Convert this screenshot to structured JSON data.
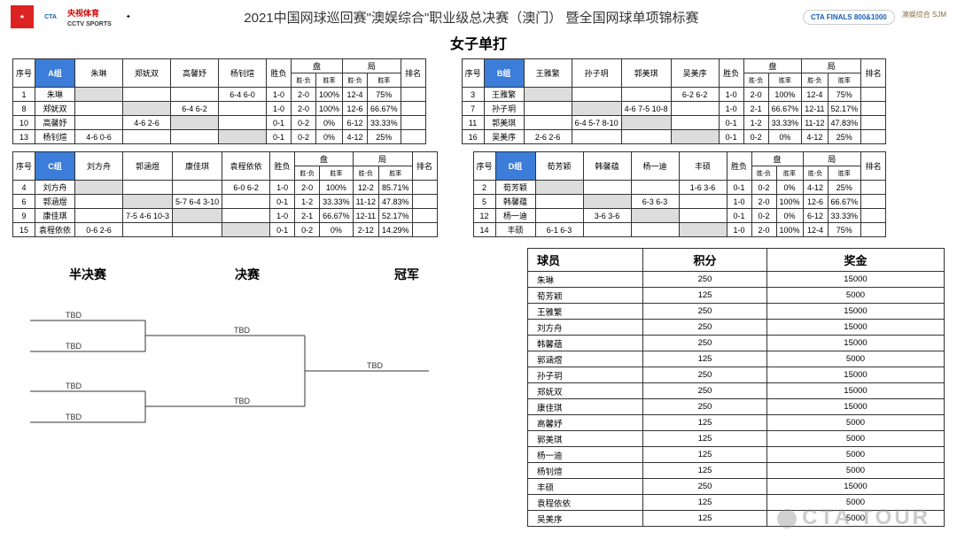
{
  "header": {
    "title": "2021中国网球巡回赛\"澳娱综合\"职业级总决赛（澳门） 暨全国网球单项锦标赛",
    "subtitle": "女子单打",
    "logos_left": [
      "央视体育",
      "CCTV SPORTS"
    ],
    "logos_right": [
      "CTA FINALS 800&1000",
      "澳娱综合 SJM"
    ]
  },
  "group_headers": {
    "seq": "序号",
    "wl": "胜负",
    "pan": "盘",
    "ju": "局",
    "rank": "排名",
    "sf": "胜-负",
    "sl": "胜率"
  },
  "groups": [
    {
      "label": "A组",
      "players": [
        "朱琳",
        "郑妩双",
        "高馨妤",
        "杨钊煊"
      ],
      "rows": [
        {
          "seq": "1",
          "name": "朱琳",
          "v": [
            "",
            "",
            "",
            "6-4 6-0"
          ],
          "wl": "1-0",
          "pf": "2-0",
          "pl": "100%",
          "jf": "12-4",
          "jl": "75%",
          "rank": ""
        },
        {
          "seq": "8",
          "name": "郑妩双",
          "v": [
            "",
            "",
            "6-4 6-2",
            ""
          ],
          "wl": "1-0",
          "pf": "2-0",
          "pl": "100%",
          "jf": "12-6",
          "jl": "66.67%",
          "rank": ""
        },
        {
          "seq": "10",
          "name": "高馨妤",
          "v": [
            "",
            "4-6 2-6",
            "",
            ""
          ],
          "wl": "0-1",
          "pf": "0-2",
          "pl": "0%",
          "jf": "6-12",
          "jl": "33.33%",
          "rank": ""
        },
        {
          "seq": "13",
          "name": "杨钊煊",
          "v": [
            "4-6 0-6",
            "",
            "",
            ""
          ],
          "wl": "0-1",
          "pf": "0-2",
          "pl": "0%",
          "jf": "4-12",
          "jl": "25%",
          "rank": ""
        }
      ]
    },
    {
      "label": "B组",
      "players": [
        "王雅繁",
        "孙子玥",
        "郭美琪",
        "吴美序"
      ],
      "rows": [
        {
          "seq": "3",
          "name": "王雅繁",
          "v": [
            "",
            "",
            "",
            "6-2 6-2"
          ],
          "wl": "1-0",
          "pf": "2-0",
          "pl": "100%",
          "jf": "12-4",
          "jl": "75%",
          "rank": ""
        },
        {
          "seq": "7",
          "name": "孙子玥",
          "v": [
            "",
            "",
            "4-6 7-5 10-8",
            ""
          ],
          "wl": "1-0",
          "pf": "2-1",
          "pl": "66.67%",
          "jf": "12-11",
          "jl": "52.17%",
          "rank": ""
        },
        {
          "seq": "11",
          "name": "郭美琪",
          "v": [
            "",
            "6-4 5-7 8-10",
            "",
            ""
          ],
          "wl": "0-1",
          "pf": "1-2",
          "pl": "33.33%",
          "jf": "11-12",
          "jl": "47.83%",
          "rank": ""
        },
        {
          "seq": "16",
          "name": "吴美序",
          "v": [
            "2-6 2-6",
            "",
            "",
            ""
          ],
          "wl": "0-1",
          "pf": "0-2",
          "pl": "0%",
          "jf": "4-12",
          "jl": "25%",
          "rank": ""
        }
      ]
    },
    {
      "label": "C组",
      "players": [
        "刘方舟",
        "郭涵煜",
        "康佳琪",
        "袁程依依"
      ],
      "rows": [
        {
          "seq": "4",
          "name": "刘方舟",
          "v": [
            "",
            "",
            "",
            "6-0 6-2"
          ],
          "wl": "1-0",
          "pf": "2-0",
          "pl": "100%",
          "jf": "12-2",
          "jl": "85.71%",
          "rank": ""
        },
        {
          "seq": "6",
          "name": "郭涵煜",
          "v": [
            "",
            "",
            "5-7 6-4  3-10",
            ""
          ],
          "wl": "0-1",
          "pf": "1-2",
          "pl": "33.33%",
          "jf": "11-12",
          "jl": "47.83%",
          "rank": ""
        },
        {
          "seq": "9",
          "name": "康佳琪",
          "v": [
            "",
            "7-5 4-6  10-3",
            "",
            ""
          ],
          "wl": "1-0",
          "pf": "2-1",
          "pl": "66.67%",
          "jf": "12-11",
          "jl": "52.17%",
          "rank": ""
        },
        {
          "seq": "15",
          "name": "袁程依依",
          "v": [
            "0-6 2-6",
            "",
            "",
            ""
          ],
          "wl": "0-1",
          "pf": "0-2",
          "pl": "0%",
          "jf": "2-12",
          "jl": "14.29%",
          "rank": ""
        }
      ]
    },
    {
      "label": "D组",
      "players": [
        "荀芳颖",
        "韩馨蕴",
        "杨一迪",
        "丰硕"
      ],
      "rows": [
        {
          "seq": "2",
          "name": "荀芳颖",
          "v": [
            "",
            "",
            "",
            "1-6 3-6"
          ],
          "wl": "0-1",
          "pf": "0-2",
          "pl": "0%",
          "jf": "4-12",
          "jl": "25%",
          "rank": ""
        },
        {
          "seq": "5",
          "name": "韩馨蕴",
          "v": [
            "",
            "",
            "6-3 6-3",
            ""
          ],
          "wl": "1-0",
          "pf": "2-0",
          "pl": "100%",
          "jf": "12-6",
          "jl": "66.67%",
          "rank": ""
        },
        {
          "seq": "12",
          "name": "杨一迪",
          "v": [
            "",
            "3-6 3-6",
            "",
            ""
          ],
          "wl": "0-1",
          "pf": "0-2",
          "pl": "0%",
          "jf": "6-12",
          "jl": "33.33%",
          "rank": ""
        },
        {
          "seq": "14",
          "name": "丰硕",
          "v": [
            "6-1 6-3",
            "",
            "",
            ""
          ],
          "wl": "1-0",
          "pf": "2-0",
          "pl": "100%",
          "jf": "12-4",
          "jl": "75%",
          "rank": ""
        }
      ]
    }
  ],
  "bracket": {
    "labels": [
      "半决赛",
      "决赛",
      "冠军"
    ],
    "slots": [
      "TBD",
      "TBD",
      "TBD",
      "TBD",
      "TBD",
      "TBD",
      "TBD"
    ]
  },
  "points": {
    "headers": [
      "球员",
      "积分",
      "奖金"
    ],
    "rows": [
      [
        "朱琳",
        "250",
        "15000"
      ],
      [
        "荀芳颖",
        "125",
        "5000"
      ],
      [
        "王雅繁",
        "250",
        "15000"
      ],
      [
        "刘方舟",
        "250",
        "15000"
      ],
      [
        "韩馨蕴",
        "250",
        "15000"
      ],
      [
        "郭涵煜",
        "125",
        "5000"
      ],
      [
        "孙子玥",
        "250",
        "15000"
      ],
      [
        "郑妩双",
        "250",
        "15000"
      ],
      [
        "康佳琪",
        "250",
        "15000"
      ],
      [
        "高馨妤",
        "125",
        "5000"
      ],
      [
        "郭美琪",
        "125",
        "5000"
      ],
      [
        "杨一迪",
        "125",
        "5000"
      ],
      [
        "杨钊煊",
        "125",
        "5000"
      ],
      [
        "丰硕",
        "250",
        "15000"
      ],
      [
        "袁程依依",
        "125",
        "5000"
      ],
      [
        "吴美序",
        "125",
        "5000"
      ]
    ]
  },
  "watermark": "CTA  TOUR",
  "colors": {
    "group_header_bg": "#3b7dd8",
    "border": "#333333",
    "watermark": "rgba(140,140,140,0.45)"
  }
}
